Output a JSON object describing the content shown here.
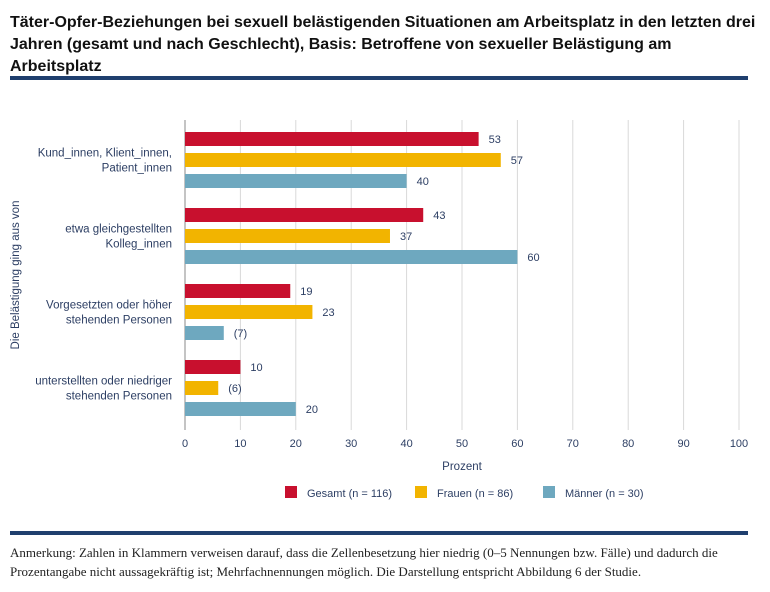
{
  "title": "Täter-Opfer-Beziehungen bei sexuell belästigenden Situationen am Arbeitsplatz in den letzten drei Jahren (gesamt und nach Geschlecht), Basis: Betroffene von sexueller Belästigung am Arbeitsplatz",
  "note": "Anmerkung: Zahlen in Klammern verweisen darauf, dass die Zellenbesetzung hier niedrig (0–5 Nennungen bzw. Fälle) und dadurch die Prozentangabe nicht aussagekräftig ist; Mehrfachnennungen möglich. Die Darstellung entspricht Abbildung 6 der Studie.",
  "colors": {
    "rule": "#1f3f6e",
    "gesamt": "#c8102e",
    "frauen": "#f2b400",
    "maenner": "#6ea8bf",
    "grid": "#d9d9d9",
    "text": "#2c3e63"
  },
  "chart_data": {
    "type": "bar",
    "orientation": "horizontal",
    "xlabel": "Prozent",
    "ylabel": "Die Belästigung ging aus von",
    "xlim": [
      0,
      100
    ],
    "xticks": [
      0,
      10,
      20,
      30,
      40,
      50,
      60,
      70,
      80,
      90,
      100
    ],
    "grid": true,
    "legend_position": "bottom",
    "categories": [
      [
        "Kund_innen, Klient_innen,",
        "Patient_innen"
      ],
      [
        "etwa gleichgestellten",
        "Kolleg_innen"
      ],
      [
        "Vorgesetzten oder höher",
        "stehenden Personen"
      ],
      [
        "unterstellten oder niedriger",
        "stehenden Personen"
      ]
    ],
    "series": [
      {
        "name": "Gesamt (n = 116)",
        "color": "#c8102e",
        "values": [
          53,
          43,
          19,
          10
        ],
        "labels": [
          "53",
          "43",
          "19",
          "10"
        ]
      },
      {
        "name": "Frauen (n = 86)",
        "color": "#f2b400",
        "values": [
          57,
          37,
          23,
          6
        ],
        "labels": [
          "57",
          "37",
          "23",
          "(6)"
        ]
      },
      {
        "name": "Männer (n = 30)",
        "color": "#6ea8bf",
        "values": [
          40,
          60,
          7,
          20
        ],
        "labels": [
          "40",
          "60",
          "(7)",
          "20"
        ]
      }
    ]
  }
}
